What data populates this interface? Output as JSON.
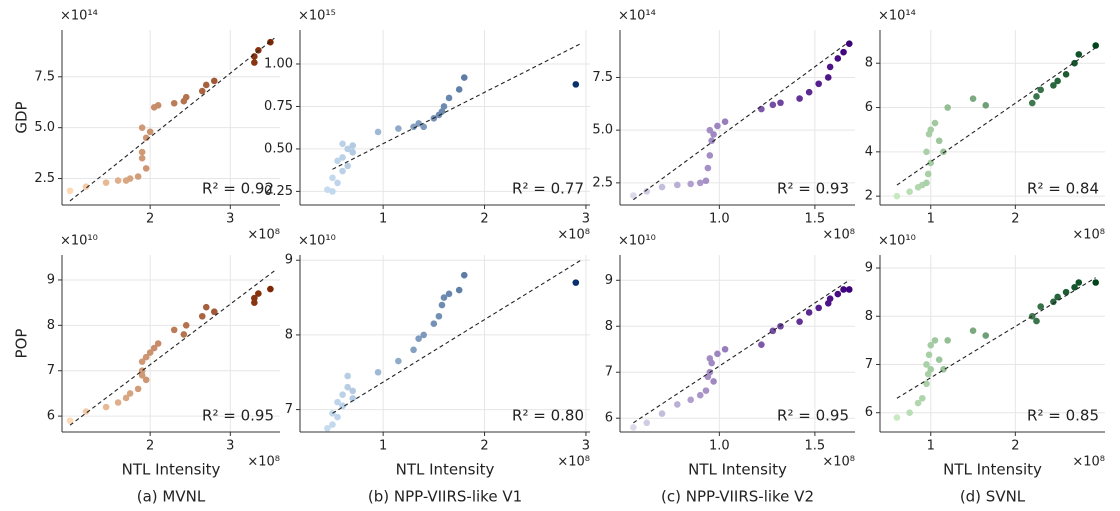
{
  "captions": [
    "(a) MVNL",
    "(b) NPP-VIIRS-like V1",
    "(c) NPP-VIIRS-like V2",
    "(d) SVNL"
  ],
  "chart_data": [
    {
      "type": "scatter",
      "ylabel": "GDP",
      "y_offset": "×10¹⁴",
      "x_offset": "×10⁸",
      "annotation": "R² = 0.92",
      "grid": true,
      "colormap": [
        "#fdd9b5",
        "#7f2704"
      ],
      "xlim": [
        0.9,
        3.62
      ],
      "xticks": [
        2,
        3
      ],
      "ylim": [
        1.2,
        9.8
      ],
      "yticks": [
        2.5,
        {
          "value": 5,
          "label": "5.0"
        },
        7.5
      ],
      "x": [
        1.0,
        1.2,
        1.45,
        1.6,
        1.7,
        1.75,
        1.85,
        1.9,
        1.9,
        1.95,
        1.9,
        1.95,
        2.0,
        2.05,
        2.1,
        2.3,
        2.42,
        2.45,
        2.65,
        2.7,
        2.8,
        3.3,
        3.3,
        3.35,
        3.5
      ],
      "values": [
        1.9,
        2.1,
        2.3,
        2.4,
        2.4,
        2.5,
        2.6,
        3.5,
        3.8,
        3.0,
        5.0,
        4.5,
        4.8,
        6.0,
        6.1,
        6.2,
        6.3,
        6.5,
        6.8,
        7.1,
        7.3,
        8.2,
        8.5,
        8.8,
        9.2
      ],
      "trend": {
        "x": [
          1.0,
          3.55
        ],
        "values": [
          1.4,
          9.4
        ]
      }
    },
    {
      "type": "scatter",
      "ylabel": "POP",
      "xlabel": "NTL Intensity",
      "y_offset": "×10¹⁰",
      "x_offset": "×10⁸",
      "annotation": "R² = 0.95",
      "grid": true,
      "colormap": [
        "#fdd9b5",
        "#7f2704"
      ],
      "xlim": [
        0.9,
        3.62
      ],
      "xticks": [
        2,
        3
      ],
      "ylim": [
        5.65,
        9.55
      ],
      "yticks": [
        6,
        7,
        8,
        9
      ],
      "x": [
        1.0,
        1.2,
        1.45,
        1.6,
        1.7,
        1.75,
        1.85,
        1.9,
        1.9,
        1.95,
        1.9,
        1.95,
        2.0,
        2.05,
        2.1,
        2.3,
        2.42,
        2.45,
        2.65,
        2.7,
        2.8,
        3.3,
        3.3,
        3.35,
        3.5
      ],
      "values": [
        5.9,
        6.1,
        6.2,
        6.3,
        6.4,
        6.5,
        6.6,
        6.9,
        7.0,
        6.8,
        7.2,
        7.3,
        7.4,
        7.5,
        7.6,
        7.9,
        7.8,
        8.0,
        8.2,
        8.4,
        8.3,
        8.5,
        8.6,
        8.7,
        8.8
      ],
      "trend": {
        "x": [
          1.0,
          3.55
        ],
        "values": [
          5.8,
          9.2
        ]
      }
    },
    {
      "type": "scatter",
      "y_offset": "×10¹⁵",
      "x_offset": "×10⁸",
      "annotation": "R² = 0.77",
      "grid": true,
      "colormap": [
        "#c6dbef",
        "#08306b"
      ],
      "xlim": [
        0.18,
        3.04
      ],
      "xticks": [
        1,
        2,
        3
      ],
      "ylim": [
        0.17,
        1.2
      ],
      "yticks": [
        0.25,
        {
          "value": 0.5,
          "label": "0.50"
        },
        0.75,
        {
          "value": 1,
          "label": "1.00"
        }
      ],
      "x": [
        0.45,
        0.5,
        0.55,
        0.5,
        0.6,
        0.55,
        0.6,
        0.65,
        0.65,
        0.7,
        0.6,
        0.7,
        0.95,
        1.15,
        1.3,
        1.35,
        1.4,
        1.5,
        1.55,
        1.58,
        1.6,
        1.65,
        1.75,
        1.8,
        2.9
      ],
      "values": [
        0.26,
        0.25,
        0.3,
        0.33,
        0.37,
        0.43,
        0.45,
        0.4,
        0.5,
        0.48,
        0.53,
        0.52,
        0.6,
        0.62,
        0.63,
        0.65,
        0.63,
        0.68,
        0.7,
        0.72,
        0.75,
        0.8,
        0.85,
        0.92,
        0.88
      ],
      "trend": {
        "x": [
          0.5,
          2.95
        ],
        "values": [
          0.38,
          1.12
        ]
      }
    },
    {
      "type": "scatter",
      "xlabel": "NTL Intensity",
      "y_offset": "×10¹⁰",
      "x_offset": "×10⁸",
      "annotation": "R² = 0.80",
      "grid": true,
      "colormap": [
        "#c6dbef",
        "#08306b"
      ],
      "xlim": [
        0.18,
        3.04
      ],
      "xticks": [
        1,
        2,
        3
      ],
      "ylim": [
        6.7,
        9.07
      ],
      "yticks": [
        7,
        8,
        9
      ],
      "x": [
        0.45,
        0.5,
        0.55,
        0.5,
        0.6,
        0.55,
        0.6,
        0.65,
        0.65,
        0.7,
        0.6,
        0.7,
        0.95,
        1.15,
        1.3,
        1.35,
        1.4,
        1.5,
        1.55,
        1.58,
        1.6,
        1.65,
        1.75,
        1.8,
        2.9
      ],
      "values": [
        6.75,
        6.8,
        6.9,
        6.95,
        7.05,
        7.1,
        7.2,
        7.3,
        7.45,
        7.15,
        7.05,
        7.25,
        7.5,
        7.65,
        7.8,
        7.95,
        8.0,
        8.15,
        8.25,
        8.4,
        8.5,
        8.55,
        8.6,
        8.8,
        8.7
      ],
      "trend": {
        "x": [
          0.5,
          2.95
        ],
        "values": [
          6.95,
          9.0
        ]
      }
    },
    {
      "type": "scatter",
      "y_offset": "×10¹⁴",
      "x_offset": "×10⁸",
      "annotation": "R² = 0.93",
      "grid": true,
      "colormap": [
        "#dadaeb",
        "#3f007d"
      ],
      "xlim": [
        0.48,
        1.71
      ],
      "xticks": [
        {
          "value": 1,
          "label": "1.0"
        },
        1.5
      ],
      "ylim": [
        1.45,
        9.75
      ],
      "yticks": [
        2.5,
        {
          "value": 5,
          "label": "5.0"
        },
        7.5
      ],
      "x": [
        0.55,
        0.62,
        0.7,
        0.78,
        0.85,
        0.9,
        0.93,
        0.94,
        0.95,
        0.96,
        0.95,
        0.97,
        0.99,
        1.03,
        1.22,
        1.28,
        1.32,
        1.42,
        1.47,
        1.52,
        1.57,
        1.58,
        1.62,
        1.65,
        1.68
      ],
      "values": [
        1.9,
        2.1,
        2.3,
        2.4,
        2.45,
        2.5,
        2.6,
        3.2,
        3.8,
        4.5,
        5.0,
        4.8,
        5.2,
        5.4,
        6.0,
        6.2,
        6.3,
        6.5,
        6.8,
        7.2,
        7.5,
        8.0,
        8.4,
        8.7,
        9.1
      ],
      "trend": {
        "x": [
          0.55,
          1.68
        ],
        "values": [
          1.7,
          9.2
        ]
      }
    },
    {
      "type": "scatter",
      "xlabel": "NTL Intensity",
      "y_offset": "×10¹⁰",
      "x_offset": "×10⁸",
      "annotation": "R² = 0.95",
      "grid": true,
      "colormap": [
        "#dadaeb",
        "#3f007d"
      ],
      "xlim": [
        0.48,
        1.71
      ],
      "xticks": [
        {
          "value": 1,
          "label": "1.0"
        },
        1.5
      ],
      "ylim": [
        5.7,
        9.55
      ],
      "yticks": [
        6,
        7,
        8,
        9
      ],
      "x": [
        0.55,
        0.62,
        0.7,
        0.78,
        0.85,
        0.9,
        0.93,
        0.94,
        0.95,
        0.96,
        0.95,
        0.97,
        0.99,
        1.03,
        1.22,
        1.28,
        1.32,
        1.42,
        1.47,
        1.52,
        1.57,
        1.58,
        1.62,
        1.65,
        1.68
      ],
      "values": [
        5.8,
        5.9,
        6.1,
        6.3,
        6.4,
        6.5,
        6.6,
        6.9,
        7.0,
        7.2,
        7.3,
        6.8,
        7.4,
        7.5,
        7.6,
        7.9,
        8.0,
        8.1,
        8.3,
        8.4,
        8.5,
        8.6,
        8.7,
        8.8,
        8.8
      ],
      "trend": {
        "x": [
          0.55,
          1.68
        ],
        "values": [
          5.9,
          9.0
        ]
      }
    },
    {
      "type": "scatter",
      "y_offset": "×10¹⁴",
      "x_offset": "×10⁸",
      "annotation": "R² = 0.84",
      "grid": true,
      "colormap": [
        "#c7e9c0",
        "#00441b"
      ],
      "xlim": [
        0.4,
        3.06
      ],
      "xticks": [
        1,
        2
      ],
      "ylim": [
        1.6,
        9.5
      ],
      "yticks": [
        2,
        4,
        6,
        8
      ],
      "x": [
        0.6,
        0.75,
        0.85,
        0.9,
        0.95,
        0.97,
        1.0,
        0.95,
        0.98,
        1.0,
        1.05,
        1.1,
        1.15,
        1.2,
        1.5,
        1.65,
        2.2,
        2.25,
        2.3,
        2.45,
        2.5,
        2.6,
        2.7,
        2.75,
        2.95
      ],
      "values": [
        2.0,
        2.2,
        2.4,
        2.5,
        2.6,
        3.0,
        3.5,
        4.0,
        4.8,
        5.0,
        5.3,
        4.5,
        4.0,
        6.0,
        6.4,
        6.1,
        6.2,
        6.5,
        6.8,
        7.0,
        7.2,
        7.5,
        8.0,
        8.4,
        8.8
      ],
      "trend": {
        "x": [
          0.6,
          2.95
        ],
        "values": [
          2.5,
          8.7
        ]
      }
    },
    {
      "type": "scatter",
      "xlabel": "NTL Intensity",
      "y_offset": "×10¹⁰",
      "x_offset": "×10⁸",
      "annotation": "R² = 0.85",
      "grid": true,
      "colormap": [
        "#c7e9c0",
        "#00441b"
      ],
      "xlim": [
        0.4,
        3.06
      ],
      "xticks": [
        1,
        2
      ],
      "ylim": [
        5.6,
        9.27
      ],
      "yticks": [
        6,
        7,
        8,
        9
      ],
      "x": [
        0.6,
        0.75,
        0.85,
        0.9,
        0.95,
        0.97,
        1.0,
        0.95,
        0.98,
        1.0,
        1.05,
        1.1,
        1.15,
        1.2,
        1.5,
        1.65,
        2.2,
        2.25,
        2.3,
        2.45,
        2.5,
        2.6,
        2.7,
        2.75,
        2.95
      ],
      "values": [
        5.9,
        6.0,
        6.2,
        6.3,
        6.6,
        6.8,
        6.9,
        7.0,
        7.2,
        7.4,
        7.5,
        7.1,
        6.9,
        7.5,
        7.7,
        7.6,
        8.0,
        7.9,
        8.2,
        8.3,
        8.4,
        8.5,
        8.6,
        8.7,
        8.7
      ],
      "trend": {
        "x": [
          0.6,
          2.95
        ],
        "values": [
          6.3,
          8.8
        ]
      }
    }
  ]
}
